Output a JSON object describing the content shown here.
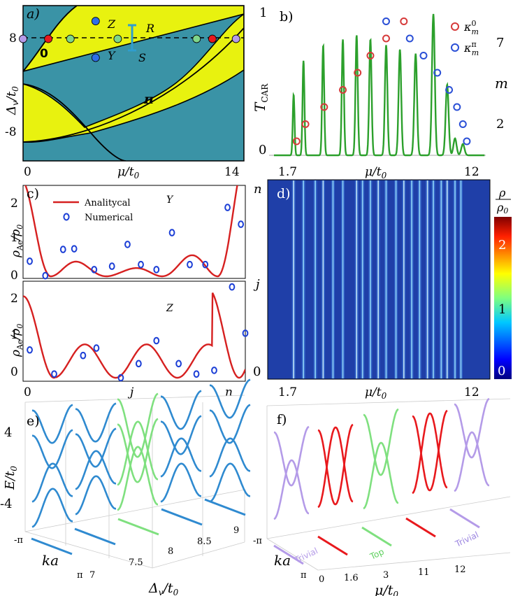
{
  "figure": {
    "panel_a": {
      "label": "a)",
      "xlabel": "μ/t",
      "xlabel_sub": "0",
      "ylabel": "Δ",
      "ylabel_sub": "v",
      "ylabel_rest": "/t",
      "ylabel_sub2": "0",
      "xticks": [
        "0",
        "14"
      ],
      "yticks": [
        "8",
        "-8"
      ],
      "region_labels": [
        "0",
        "π"
      ],
      "point_labels": [
        "Z",
        "Y",
        "R",
        "S"
      ],
      "colors": {
        "teal": "#3a93a6",
        "yellow": "#e8f20f",
        "red": "#e8191d",
        "green": "#7fd68a",
        "violet": "#b49be8",
        "blue": "#2e6ee8",
        "interval": "#2f9ecf"
      }
    },
    "panel_b": {
      "label": "b)",
      "ylabel": "T",
      "ylabel_sub": "CAR",
      "xlabel": "μ/t",
      "xlabel_sub": "0",
      "xticks": [
        "1.7",
        "12"
      ],
      "yticks_left": [
        "0",
        "1"
      ],
      "yticks_right": [
        "7",
        "2"
      ],
      "right_label": "m",
      "legend": [
        {
          "sym": "κ",
          "sup": "0",
          "sub": "m",
          "color": "#d63a3a"
        },
        {
          "sym": "κ",
          "sup": "π",
          "sub": "m",
          "color": "#2a4fd6"
        }
      ]
    },
    "panel_c": {
      "label": "c)",
      "legend": [
        "Analitycal",
        "Numerical"
      ],
      "top_tag": "Y",
      "bottom_tag": "Z",
      "ylabel": "ρ",
      "ylabel_sub": "Ae",
      "ylabel_rest": "/ρ",
      "ylabel_sub2": "0",
      "yticks_top": [
        "2",
        "1",
        "0"
      ],
      "yticks_bottom": [
        "2",
        "1",
        "0"
      ],
      "xticks": [
        "0",
        "j",
        "n"
      ]
    },
    "panel_d": {
      "label": "d)",
      "yticks": [
        "n",
        "j",
        "0"
      ],
      "xlabel": "μ/t",
      "xlabel_sub": "0",
      "xticks": [
        "1.7",
        "12"
      ],
      "colorbar_title_num": "ρ",
      "colorbar_title_den": "ρ",
      "colorbar_title_den_sub": "0",
      "colorbar_ticks": [
        "2",
        "1",
        "0"
      ]
    },
    "panel_e": {
      "label": "e)",
      "ylabel": "E/t",
      "ylabel_sub": "0",
      "zticks": [
        "4",
        "-4"
      ],
      "ka_label": "ka",
      "ka_ticks": [
        "-π",
        "π"
      ],
      "xticks": [
        "7",
        "7.5",
        "8",
        "8.5",
        "9"
      ],
      "xlabel": "Δ",
      "xlabel_sub": "v",
      "xlabel_rest": "/t",
      "xlabel_sub2": "0"
    },
    "panel_f": {
      "label": "f)",
      "ka_label": "ka",
      "ka_ticks": [
        "-π",
        "π"
      ],
      "xticks": [
        "0",
        "1.6",
        "3",
        "11",
        "12"
      ],
      "xlabel": "μ/t",
      "xlabel_sub": "0",
      "phase_labels": [
        "Trivial",
        "Top",
        "Trivial"
      ]
    }
  },
  "chart_data": [
    {
      "panel": "a",
      "type": "phase-diagram",
      "xlabel": "μ/t0",
      "ylabel": "Δv/t0",
      "xlim": [
        0,
        14
      ],
      "ylim": [
        -14,
        14
      ],
      "phases": [
        {
          "name": "topological π / 0",
          "color": "#e8f20f"
        },
        {
          "name": "trivial",
          "color": "#3a93a6"
        }
      ],
      "path": {
        "y": 8,
        "points": [
          {
            "mu": 0.0,
            "color": "violet"
          },
          {
            "mu": 1.6,
            "color": "red"
          },
          {
            "mu": 3.0,
            "color": "green"
          },
          {
            "mu": 6.0,
            "color": "green"
          },
          {
            "mu": 11.0,
            "color": "green"
          },
          {
            "mu": 12.0,
            "color": "red"
          },
          {
            "mu": 13.5,
            "color": "violet"
          }
        ]
      },
      "markers": [
        {
          "name": "Z",
          "mu": 4.6,
          "y": 11.2
        },
        {
          "name": "Y",
          "mu": 4.6,
          "y": 4.6
        }
      ],
      "interval": {
        "R": 11.5,
        "S": 4.4,
        "mu": 6.2
      }
    },
    {
      "panel": "b",
      "type": "line+scatter",
      "xlabel": "μ/t0",
      "ylabel": "T_CAR",
      "xlim": [
        1.7,
        12
      ],
      "ylim": [
        0,
        1
      ],
      "peaks_mu": [
        2.7,
        3.2,
        4.2,
        5.2,
        5.9,
        6.6,
        7.4,
        8.1,
        8.9,
        9.8,
        10.5,
        10.9,
        11.3
      ],
      "peaks_T": [
        0.43,
        0.67,
        0.78,
        0.82,
        0.85,
        0.82,
        0.78,
        0.75,
        0.72,
        1.0,
        0.5,
        0.12,
        0.08
      ],
      "series": [
        {
          "name": "κ0_m",
          "color": "#d63a3a",
          "points": [
            [
              2.85,
              1
            ],
            [
              3.3,
              2
            ],
            [
              4.25,
              3
            ],
            [
              5.2,
              4
            ],
            [
              5.95,
              5
            ],
            [
              6.6,
              6
            ],
            [
              7.4,
              7
            ],
            [
              8.3,
              8
            ]
          ]
        },
        {
          "name": "κπ_m",
          "color": "#2a4fd6",
          "points": [
            [
              7.4,
              8
            ],
            [
              8.6,
              7
            ],
            [
              9.3,
              6
            ],
            [
              10.0,
              5
            ],
            [
              10.6,
              4
            ],
            [
              11.0,
              3
            ],
            [
              11.3,
              2
            ],
            [
              11.5,
              1
            ]
          ]
        }
      ],
      "right_axis": {
        "label": "m",
        "ticks": [
          2,
          7
        ]
      }
    },
    {
      "panel": "c-top",
      "type": "line+scatter",
      "tag": "Y",
      "x": "j (0..n)",
      "analytical_period": 0.25,
      "numerical": [
        [
          0.03,
          0.45
        ],
        [
          0.1,
          0.02
        ],
        [
          0.18,
          0.8
        ],
        [
          0.23,
          0.82
        ],
        [
          0.32,
          0.2
        ],
        [
          0.4,
          0.3
        ],
        [
          0.47,
          0.95
        ],
        [
          0.53,
          0.35
        ],
        [
          0.6,
          0.2
        ],
        [
          0.67,
          1.3
        ],
        [
          0.75,
          0.35
        ],
        [
          0.82,
          0.35
        ],
        [
          0.92,
          2.05
        ],
        [
          0.98,
          1.55
        ]
      ],
      "ylim": [
        0,
        2.4
      ]
    },
    {
      "panel": "c-bottom",
      "type": "line+scatter",
      "tag": "Z",
      "numerical": [
        [
          0.03,
          0.75
        ],
        [
          0.14,
          0.1
        ],
        [
          0.27,
          0.6
        ],
        [
          0.33,
          0.8
        ],
        [
          0.44,
          0.0
        ],
        [
          0.52,
          0.38
        ],
        [
          0.6,
          1.0
        ],
        [
          0.7,
          0.38
        ],
        [
          0.78,
          0.1
        ],
        [
          0.86,
          0.2
        ],
        [
          0.94,
          2.45
        ],
        [
          1.0,
          1.2
        ]
      ],
      "ylim": [
        0,
        2.4
      ]
    },
    {
      "panel": "d",
      "type": "heatmap",
      "xlabel": "μ/t0",
      "ylabel": "j",
      "xlim": [
        1.7,
        12
      ],
      "colorbar": [
        0,
        2.5
      ],
      "bright_columns_mu": [
        2.7,
        3.2,
        3.8,
        4.2,
        4.7,
        5.2,
        5.9,
        6.2,
        6.6,
        7.0,
        7.4,
        7.9,
        8.3,
        8.7,
        9.1,
        9.5,
        9.8,
        10.2,
        10.5,
        10.9,
        11.2
      ]
    },
    {
      "panel": "e",
      "type": "3d-bands",
      "xlabel": "Δv/t0",
      "x": [
        7,
        7.5,
        8,
        8.5,
        9
      ],
      "band_colors": [
        "#2f8ad0",
        "#2f8ad0",
        "#7fe07f",
        "#2f8ad0",
        "#2f8ad0"
      ],
      "zlim": [
        -6,
        6
      ]
    },
    {
      "panel": "f",
      "type": "3d-bands",
      "xlabel": "μ/t0",
      "x": [
        0,
        1.6,
        3,
        11,
        12
      ],
      "band_colors": [
        "#b49be8",
        "#e8191d",
        "#7fe07f",
        "#e8191d",
        "#b49be8"
      ],
      "phases": [
        "Trivial",
        "Top",
        "Trivial"
      ]
    }
  ]
}
